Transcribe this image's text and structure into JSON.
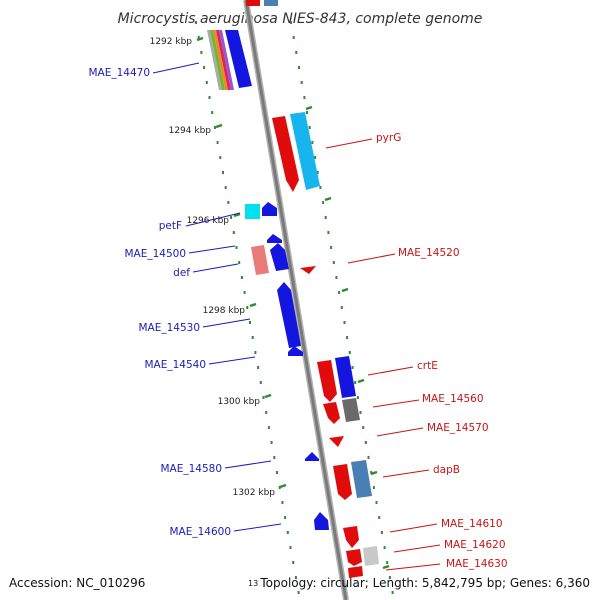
{
  "title": "Microcystis aeruginosa NIES-843, complete genome",
  "footer": {
    "accession": "Accession: NC_010296",
    "topology": "Topology: circular; Length: 5,842,795 bp; Genes: 6,360",
    "partial_number": "13"
  },
  "colors": {
    "backbone": "#8c8c8c",
    "dots": "#2e8b2e",
    "left_label": "#1c1cb8",
    "right_label": "#c81414",
    "blue_gene": "#1515e0",
    "red_gene": "#e00c0c",
    "cyan_gene": "#18b4ee",
    "steel_gene": "#4a7fb6"
  },
  "ticks": [
    {
      "label": "1292 kbp",
      "pos": 1292
    },
    {
      "label": "1294 kbp",
      "pos": 1294
    },
    {
      "label": "1296 kbp",
      "pos": 1296
    },
    {
      "label": "1298 kbp",
      "pos": 1298
    },
    {
      "label": "1300 kbp",
      "pos": 1300
    },
    {
      "label": "1302 kbp",
      "pos": 1302
    }
  ],
  "genes_left": [
    {
      "label": "MAE_14470"
    },
    {
      "label": "petF"
    },
    {
      "label": "MAE_14500"
    },
    {
      "label": "def"
    },
    {
      "label": "MAE_14530"
    },
    {
      "label": "MAE_14540"
    },
    {
      "label": "MAE_14580"
    },
    {
      "label": "MAE_14600"
    }
  ],
  "genes_right": [
    {
      "label": "pyrG"
    },
    {
      "label": "MAE_14520"
    },
    {
      "label": "crtE"
    },
    {
      "label": "MAE_14560"
    },
    {
      "label": "MAE_14570"
    },
    {
      "label": "dapB"
    },
    {
      "label": "MAE_14610"
    },
    {
      "label": "MAE_14620"
    },
    {
      "label": "MAE_14630"
    }
  ]
}
